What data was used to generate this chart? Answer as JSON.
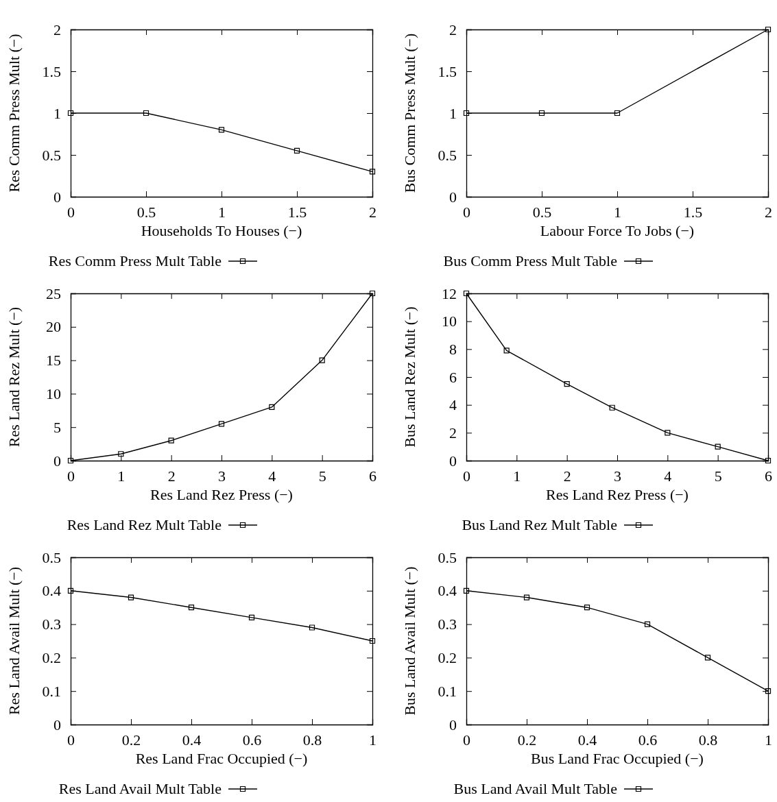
{
  "chart_data": [
    {
      "type": "line",
      "xlabel": "Households To Houses (−)",
      "ylabel": "Res Comm Press Mult (−)",
      "x": [
        0,
        0.5,
        1,
        1.5,
        2
      ],
      "xlim": [
        0,
        2
      ],
      "ylim": [
        0,
        2
      ],
      "xticks": [
        0,
        0.5,
        1,
        1.5,
        2
      ],
      "yticks": [
        0,
        0.5,
        1,
        1.5,
        2
      ],
      "grid": false,
      "legend": "bottom",
      "marker": "square",
      "line_style": "solid",
      "series": [
        {
          "name": "Res Comm Press Mult Table",
          "color": "#000000",
          "values": [
            1,
            1,
            0.8,
            0.55,
            0.3
          ]
        }
      ]
    },
    {
      "type": "line",
      "xlabel": "Labour Force To Jobs (−)",
      "ylabel": "Bus Comm Press Mult (−)",
      "x": [
        0,
        0.5,
        1,
        2
      ],
      "xlim": [
        0,
        2
      ],
      "ylim": [
        0,
        2
      ],
      "xticks": [
        0,
        0.5,
        1,
        1.5,
        2
      ],
      "yticks": [
        0,
        0.5,
        1,
        1.5,
        2
      ],
      "grid": false,
      "legend": "bottom",
      "marker": "square",
      "line_style": "solid",
      "series": [
        {
          "name": "Bus Comm Press Mult Table",
          "color": "#000000",
          "values": [
            1,
            1,
            1,
            2
          ]
        }
      ]
    },
    {
      "type": "line",
      "xlabel": "Res Land Rez Press (−)",
      "ylabel": "Res Land Rez Mult (−)",
      "x": [
        0,
        1,
        2,
        3,
        4,
        5,
        6
      ],
      "xlim": [
        0,
        6
      ],
      "ylim": [
        0,
        25
      ],
      "xticks": [
        0,
        1,
        2,
        3,
        4,
        5,
        6
      ],
      "yticks": [
        0,
        5,
        10,
        15,
        20,
        25
      ],
      "grid": false,
      "legend": "bottom",
      "marker": "square",
      "line_style": "solid",
      "series": [
        {
          "name": "Res Land Rez Mult Table",
          "color": "#000000",
          "values": [
            0,
            1,
            3,
            5.5,
            8,
            15,
            25
          ]
        }
      ]
    },
    {
      "type": "line",
      "xlabel": "Res Land Rez Press (−)",
      "ylabel": "Bus Land Rez Mult (−)",
      "x": [
        0,
        0.8,
        2,
        2.9,
        4,
        5,
        6
      ],
      "xlim": [
        0,
        6
      ],
      "ylim": [
        0,
        12
      ],
      "xticks": [
        0,
        1,
        2,
        3,
        4,
        5,
        6
      ],
      "yticks": [
        0,
        2,
        4,
        6,
        8,
        10,
        12
      ],
      "grid": false,
      "legend": "bottom",
      "marker": "square",
      "line_style": "solid",
      "series": [
        {
          "name": "Bus Land Rez Mult Table",
          "color": "#000000",
          "values": [
            12,
            7.9,
            5.5,
            3.8,
            2,
            1,
            0
          ]
        }
      ]
    },
    {
      "type": "line",
      "xlabel": "Res Land Frac Occupied (−)",
      "ylabel": "Res Land Avail Mult (−)",
      "x": [
        0,
        0.2,
        0.4,
        0.6,
        0.8,
        1
      ],
      "xlim": [
        0,
        1
      ],
      "ylim": [
        0,
        0.5
      ],
      "xticks": [
        0,
        0.2,
        0.4,
        0.6,
        0.8,
        1
      ],
      "yticks": [
        0,
        0.1,
        0.2,
        0.3,
        0.4,
        0.5
      ],
      "grid": false,
      "legend": "bottom",
      "marker": "square",
      "line_style": "solid",
      "series": [
        {
          "name": "Res Land Avail Mult Table",
          "color": "#000000",
          "values": [
            0.4,
            0.38,
            0.35,
            0.32,
            0.29,
            0.25
          ]
        }
      ]
    },
    {
      "type": "line",
      "xlabel": "Bus Land Frac Occupied (−)",
      "ylabel": "Bus Land Avail Mult (−)",
      "x": [
        0,
        0.2,
        0.4,
        0.6,
        0.8,
        1
      ],
      "xlim": [
        0,
        1
      ],
      "ylim": [
        0,
        0.5
      ],
      "xticks": [
        0,
        0.2,
        0.4,
        0.6,
        0.8,
        1
      ],
      "yticks": [
        0,
        0.1,
        0.2,
        0.3,
        0.4,
        0.5
      ],
      "grid": false,
      "legend": "bottom",
      "marker": "square",
      "line_style": "solid",
      "series": [
        {
          "name": "Bus Land Avail Mult Table",
          "color": "#000000",
          "values": [
            0.4,
            0.38,
            0.35,
            0.3,
            0.2,
            0.1
          ]
        }
      ]
    }
  ]
}
